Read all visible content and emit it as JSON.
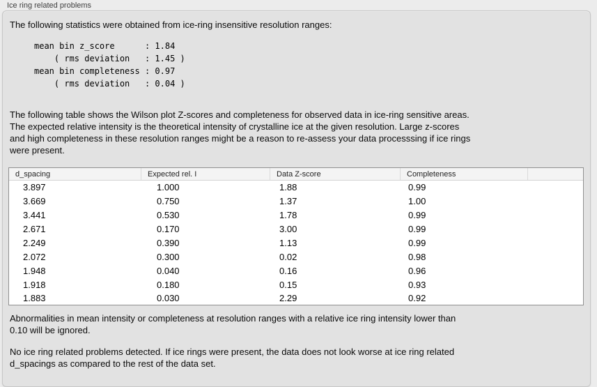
{
  "panel": {
    "title": "Ice ring related problems"
  },
  "sections": {
    "intro": "The following statistics were obtained from ice-ring insensitive resolution ranges:",
    "stats": {
      "line1": "mean bin z_score      : 1.84",
      "line2": "    ( rms deviation   : 1.45 )",
      "line3": "mean bin completeness : 0.97",
      "line4": "    ( rms deviation   : 0.04 )"
    },
    "table_note": {
      "line1": "The following table shows the Wilson plot Z-scores and completeness for observed data in ice-ring sensitive areas.",
      "line2": "The expected relative intensity is the theoretical intensity of crystalline ice at the given resolution. Large z-scores",
      "line3": "and high completeness in these resolution ranges might be a reason to re-assess your data processsing if ice rings",
      "line4": "were present."
    },
    "ignore_note": {
      "line1": "Abnormalities in mean intensity or completeness at resolution ranges with a relative ice ring intensity lower than",
      "line2": "0.10 will be ignored."
    },
    "conclusion": {
      "line1": "No ice ring related problems detected. If ice rings were present, the data does not look worse at ice ring related",
      "line2": "d_spacings as compared to the rest of the data set."
    }
  },
  "table": {
    "columns": [
      "d_spacing",
      "Expected rel. I",
      "Data Z-score",
      "Completeness"
    ],
    "rows": [
      [
        "3.897",
        "1.000",
        "1.88",
        "0.99"
      ],
      [
        "3.669",
        "0.750",
        "1.37",
        "1.00"
      ],
      [
        "3.441",
        "0.530",
        "1.78",
        "0.99"
      ],
      [
        "2.671",
        "0.170",
        "3.00",
        "0.99"
      ],
      [
        "2.249",
        "0.390",
        "1.13",
        "0.99"
      ],
      [
        "2.072",
        "0.300",
        "0.02",
        "0.98"
      ],
      [
        "1.948",
        "0.040",
        "0.16",
        "0.96"
      ],
      [
        "1.918",
        "0.180",
        "0.15",
        "0.93"
      ],
      [
        "1.883",
        "0.030",
        "2.29",
        "0.92"
      ]
    ]
  },
  "colors": {
    "window_background": "#ececec",
    "panel_background": "#e2e2e2",
    "panel_border": "#c6c6c6",
    "table_border": "#8f8f8f",
    "table_header_background": "#f4f4f4",
    "table_background": "#ffffff",
    "text": "#000000"
  }
}
